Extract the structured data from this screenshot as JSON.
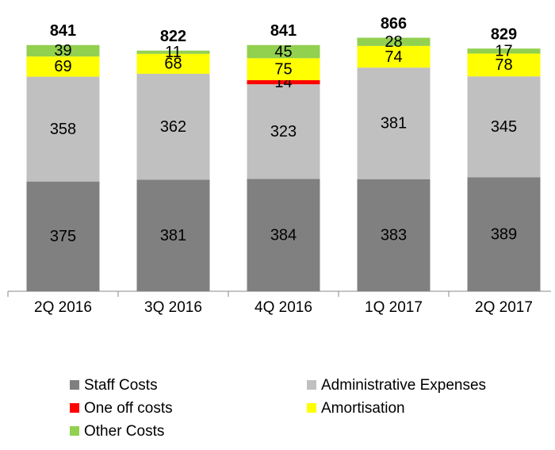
{
  "chart_data": {
    "type": "stacked_bar",
    "categories": [
      "2Q 2016",
      "3Q 2016",
      "4Q 2016",
      "1Q 2017",
      "2Q 2017"
    ],
    "series": [
      {
        "name": "Staff Costs",
        "color": "#808080",
        "values": [
          375,
          381,
          384,
          383,
          389
        ]
      },
      {
        "name": "Administrative Expenses",
        "color": "#c0c0c0",
        "values": [
          358,
          362,
          323,
          381,
          345
        ]
      },
      {
        "name": "One off costs",
        "color": "#ff0000",
        "values": [
          null,
          null,
          14,
          null,
          null
        ]
      },
      {
        "name": "Amortisation",
        "color": "#ffff00",
        "values": [
          69,
          68,
          75,
          74,
          78
        ]
      },
      {
        "name": "Other Costs",
        "color": "#92d050",
        "values": [
          39,
          11,
          45,
          28,
          17
        ]
      }
    ],
    "totals": [
      841,
      822,
      841,
      866,
      829
    ],
    "ylim": [
      0,
      900
    ]
  }
}
